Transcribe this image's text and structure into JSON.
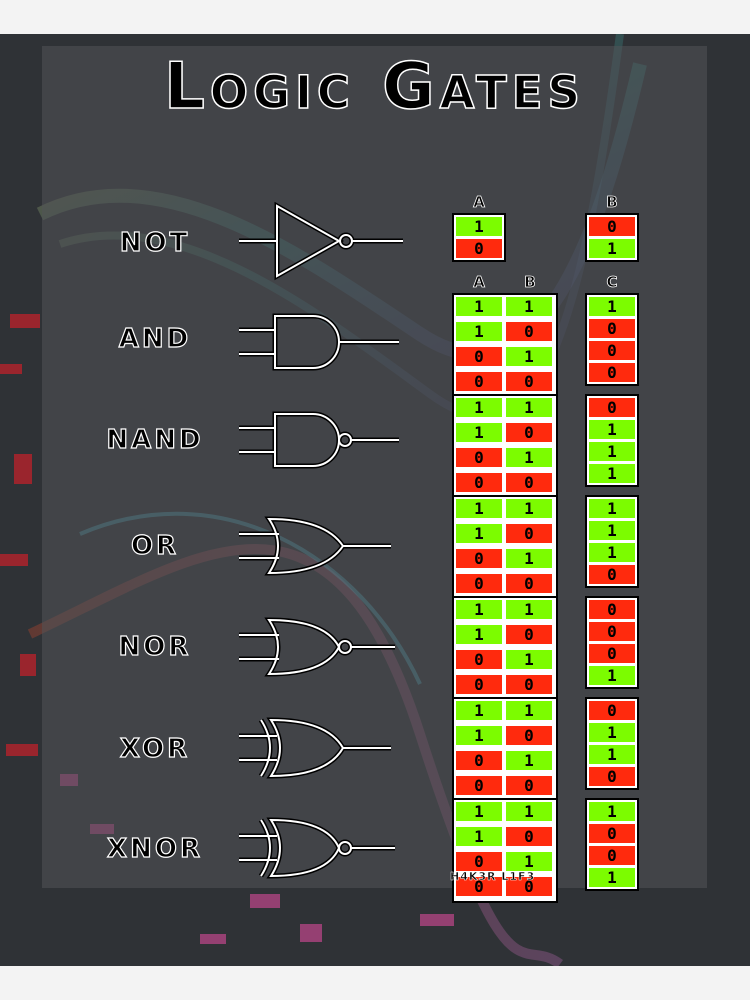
{
  "title": "Logic Gates",
  "author": "H4K3R L1F3",
  "colors": {
    "true": "#7cfc00",
    "false": "#ff2a0d",
    "background": "#2f3236"
  },
  "not_headers": {
    "input": "A",
    "output": "B"
  },
  "headers": {
    "a": "A",
    "b": "B",
    "c": "C"
  },
  "not_table": {
    "a": [
      "1",
      "0"
    ],
    "b": [
      "0",
      "1"
    ]
  },
  "gates": [
    {
      "label": "NOT",
      "symbol": "not-gate-icon"
    },
    {
      "label": "AND",
      "symbol": "and-gate-icon",
      "a": [
        "1",
        "1",
        "0",
        "0"
      ],
      "b": [
        "1",
        "0",
        "1",
        "0"
      ],
      "c": [
        "1",
        "0",
        "0",
        "0"
      ]
    },
    {
      "label": "NAND",
      "symbol": "nand-gate-icon",
      "a": [
        "1",
        "1",
        "0",
        "0"
      ],
      "b": [
        "1",
        "0",
        "1",
        "0"
      ],
      "c": [
        "0",
        "1",
        "1",
        "1"
      ]
    },
    {
      "label": "OR",
      "symbol": "or-gate-icon",
      "a": [
        "1",
        "1",
        "0",
        "0"
      ],
      "b": [
        "1",
        "0",
        "1",
        "0"
      ],
      "c": [
        "1",
        "1",
        "1",
        "0"
      ]
    },
    {
      "label": "NOR",
      "symbol": "nor-gate-icon",
      "a": [
        "1",
        "1",
        "0",
        "0"
      ],
      "b": [
        "1",
        "0",
        "1",
        "0"
      ],
      "c": [
        "0",
        "0",
        "0",
        "1"
      ]
    },
    {
      "label": "XOR",
      "symbol": "xor-gate-icon",
      "a": [
        "1",
        "1",
        "0",
        "0"
      ],
      "b": [
        "1",
        "0",
        "1",
        "0"
      ],
      "c": [
        "0",
        "1",
        "1",
        "0"
      ]
    },
    {
      "label": "XNOR",
      "symbol": "xnor-gate-icon",
      "a": [
        "1",
        "1",
        "0",
        "0"
      ],
      "b": [
        "1",
        "0",
        "1",
        "0"
      ],
      "c": [
        "1",
        "0",
        "0",
        "1"
      ]
    }
  ]
}
